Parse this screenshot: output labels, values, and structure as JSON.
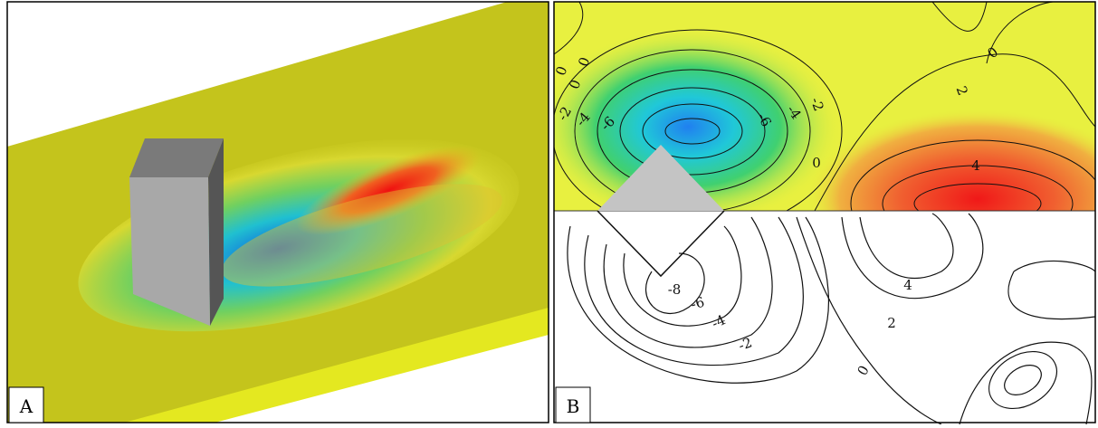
{
  "panels": [
    {
      "label": "A"
    },
    {
      "label": "B",
      "contour_labels_top": [
        "0",
        "0",
        "0",
        "-2",
        "-4",
        "-6",
        "-6",
        "-4",
        "-2",
        "0",
        "2",
        "4",
        "0"
      ],
      "contour_labels_bottom": [
        "-8",
        "-6",
        "-4",
        "-2",
        "0",
        "2",
        "4"
      ]
    }
  ]
}
